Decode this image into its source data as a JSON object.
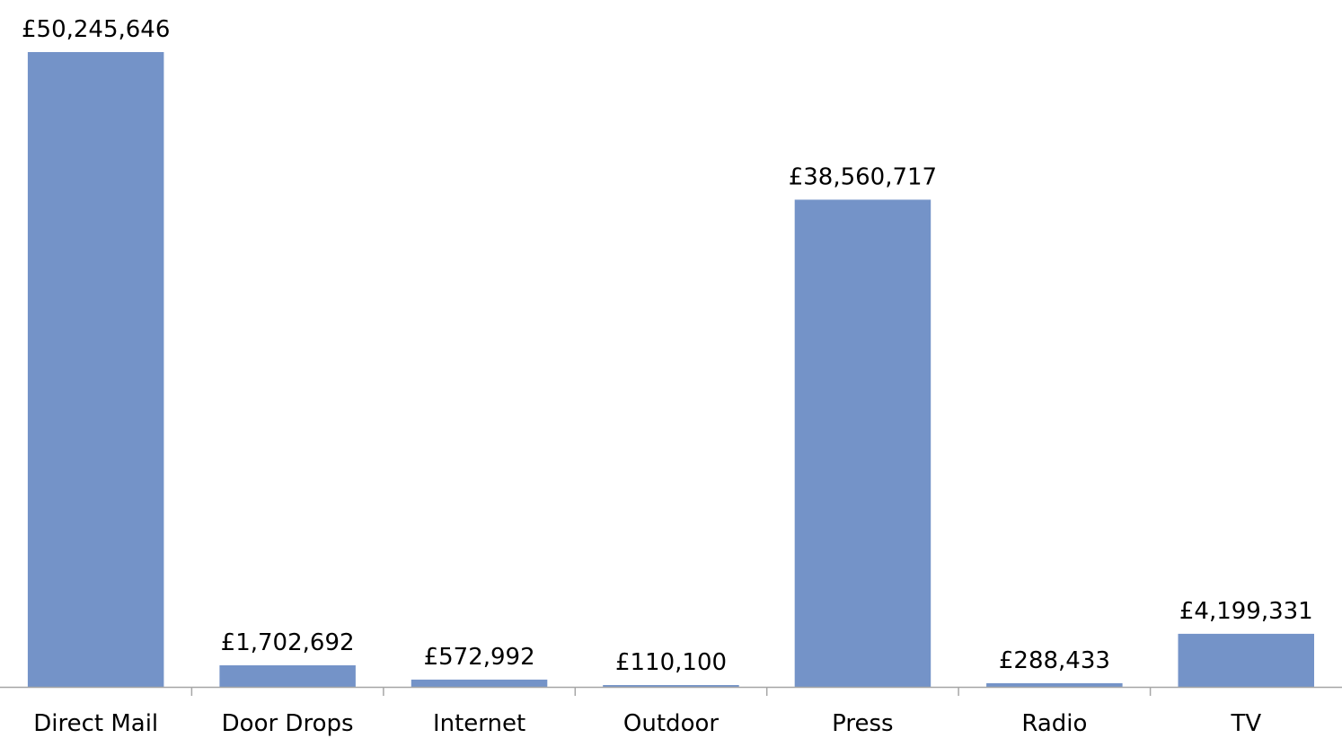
{
  "chart_data": {
    "type": "bar",
    "title": "",
    "xlabel": "",
    "ylabel": "",
    "categories": [
      "Direct Mail",
      "Door Drops",
      "Internet",
      "Outdoor",
      "Press",
      "Radio",
      "TV"
    ],
    "values": [
      50245646,
      1702692,
      572992,
      110100,
      38560717,
      288433,
      4199331
    ],
    "data_labels": [
      "£50,245,646",
      "£1,702,692",
      "£572,992",
      "£110,100",
      "£38,560,717",
      "£288,433",
      "£4,199,331"
    ],
    "ylim": [
      0,
      50245646
    ],
    "grid": false,
    "legend": "none",
    "colors": {
      "bar": "#7493c8",
      "axis": "#a6a6a6"
    }
  }
}
